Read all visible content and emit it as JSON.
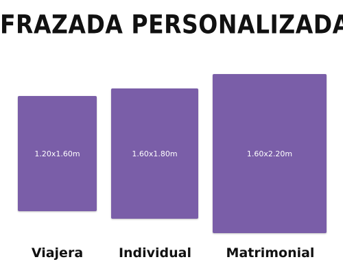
{
  "title": "FRAZADA PERSONALIZADA",
  "colors": {
    "blanket": "#7a5ea8",
    "text": "#111111",
    "background": "#ffffff"
  },
  "blankets": [
    {
      "size": "1.20x1.60m",
      "name": "Viajera"
    },
    {
      "size": "1.60x1.80m",
      "name": "Individual"
    },
    {
      "size": "1.60x2.20m",
      "name": "Matrimonial"
    }
  ]
}
